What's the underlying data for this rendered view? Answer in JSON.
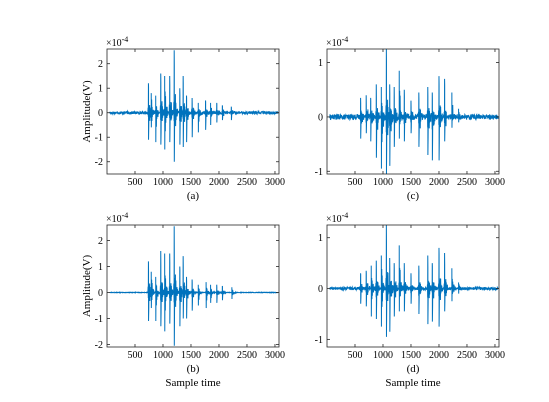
{
  "chart_data": [
    {
      "id": "a",
      "type": "line",
      "caption": "(a)",
      "ylabel": "Amplitude(V)",
      "xlabel": "",
      "exponent_label": "×10",
      "exponent_power": "-4",
      "xlim": [
        0,
        3072
      ],
      "ylim": [
        -2.5,
        2.6
      ],
      "xticks": [
        500,
        1000,
        1500,
        2000,
        2500,
        3000
      ],
      "yticks": [
        -2,
        -1,
        0,
        1,
        2
      ],
      "ytick_labels": [
        "-2",
        "-1",
        "0",
        "1",
        "2"
      ],
      "line_color": "#0072BD",
      "noise_level": 0.06,
      "events": [
        {
          "x": 740,
          "peak": 1.2,
          "trough": -1.1
        },
        {
          "x": 790,
          "peak": 0.8,
          "trough": -0.6
        },
        {
          "x": 870,
          "peak": 0.7,
          "trough": -1.2
        },
        {
          "x": 960,
          "peak": 1.6,
          "trough": -1.3
        },
        {
          "x": 1030,
          "peak": 1.5,
          "trough": -1.5
        },
        {
          "x": 1120,
          "peak": 1.5,
          "trough": -1.2
        },
        {
          "x": 1200,
          "peak": 2.55,
          "trough": -2.0
        },
        {
          "x": 1300,
          "peak": 1.0,
          "trough": -1.3
        },
        {
          "x": 1360,
          "peak": 1.5,
          "trough": -1.4
        },
        {
          "x": 1420,
          "peak": 0.7,
          "trough": -1.2
        },
        {
          "x": 1520,
          "peak": 0.6,
          "trough": -1.0
        },
        {
          "x": 1630,
          "peak": 0.4,
          "trough": -0.8
        },
        {
          "x": 1760,
          "peak": 0.5,
          "trough": -0.7
        },
        {
          "x": 1850,
          "peak": 0.4,
          "trough": -0.5
        },
        {
          "x": 1960,
          "peak": 0.4,
          "trough": -0.4
        },
        {
          "x": 2060,
          "peak": 0.3,
          "trough": -0.3
        },
        {
          "x": 2220,
          "peak": 0.25,
          "trough": -0.3
        }
      ]
    },
    {
      "id": "c",
      "type": "line",
      "caption": "(c)",
      "ylabel": "",
      "xlabel": "",
      "exponent_label": "×10",
      "exponent_power": "-4",
      "xlim": [
        0,
        3072
      ],
      "ylim": [
        -1.05,
        1.25
      ],
      "xticks": [
        500,
        1000,
        1500,
        2000,
        2500,
        3000
      ],
      "yticks": [
        -1,
        0,
        1
      ],
      "ytick_labels": [
        "-1",
        "0",
        "1"
      ],
      "line_color": "#0072BD",
      "noise_level": 0.05,
      "events": [
        {
          "x": 600,
          "peak": 0.35,
          "trough": -0.4
        },
        {
          "x": 700,
          "peak": 0.4,
          "trough": -0.3
        },
        {
          "x": 780,
          "peak": 0.35,
          "trough": -0.45
        },
        {
          "x": 880,
          "peak": 0.6,
          "trough": -0.75
        },
        {
          "x": 970,
          "peak": 0.55,
          "trough": -0.95
        },
        {
          "x": 1060,
          "peak": 1.25,
          "trough": -1.05
        },
        {
          "x": 1120,
          "peak": 0.6,
          "trough": -0.9
        },
        {
          "x": 1200,
          "peak": 0.55,
          "trough": -0.55
        },
        {
          "x": 1290,
          "peak": 0.85,
          "trough": -0.4
        },
        {
          "x": 1380,
          "peak": 0.5,
          "trough": -0.45
        },
        {
          "x": 1500,
          "peak": 0.3,
          "trough": -0.3
        },
        {
          "x": 1640,
          "peak": 0.45,
          "trough": -0.55
        },
        {
          "x": 1800,
          "peak": 0.55,
          "trough": -0.7
        },
        {
          "x": 1880,
          "peak": 0.45,
          "trough": -0.8
        },
        {
          "x": 2000,
          "peak": 0.75,
          "trough": -0.8
        },
        {
          "x": 2100,
          "peak": 0.7,
          "trough": -0.45
        },
        {
          "x": 2230,
          "peak": 0.45,
          "trough": -0.2
        },
        {
          "x": 2350,
          "peak": 0.15,
          "trough": -0.1
        }
      ]
    },
    {
      "id": "b",
      "type": "line",
      "caption": "(b)",
      "ylabel": "Amplitude(V)",
      "xlabel": "Sample time",
      "exponent_label": "×10",
      "exponent_power": "-4",
      "xlim": [
        0,
        3072
      ],
      "ylim": [
        -2.1,
        2.6
      ],
      "xticks": [
        500,
        1000,
        1500,
        2000,
        2500,
        3000
      ],
      "yticks": [
        -2,
        -1,
        0,
        1,
        2
      ],
      "ytick_labels": [
        "-2",
        "-1",
        "0",
        "1",
        "2"
      ],
      "line_color": "#0072BD",
      "noise_level": 0.01,
      "events": [
        {
          "x": 740,
          "peak": 1.2,
          "trough": -1.1
        },
        {
          "x": 790,
          "peak": 0.8,
          "trough": -0.6
        },
        {
          "x": 870,
          "peak": 0.6,
          "trough": -1.1
        },
        {
          "x": 960,
          "peak": 1.6,
          "trough": -1.3
        },
        {
          "x": 1030,
          "peak": 1.5,
          "trough": -1.5
        },
        {
          "x": 1120,
          "peak": 1.5,
          "trough": -1.2
        },
        {
          "x": 1200,
          "peak": 2.55,
          "trough": -2.05
        },
        {
          "x": 1300,
          "peak": 1.0,
          "trough": -1.3
        },
        {
          "x": 1360,
          "peak": 1.4,
          "trough": -1.0
        },
        {
          "x": 1420,
          "peak": 0.6,
          "trough": -1.0
        },
        {
          "x": 1520,
          "peak": 0.5,
          "trough": -0.7
        },
        {
          "x": 1630,
          "peak": 0.3,
          "trough": -0.5
        },
        {
          "x": 1770,
          "peak": 0.4,
          "trough": -0.6
        },
        {
          "x": 1850,
          "peak": 0.3,
          "trough": -0.4
        },
        {
          "x": 1960,
          "peak": 0.3,
          "trough": -0.4
        },
        {
          "x": 2060,
          "peak": 0.25,
          "trough": -0.3
        },
        {
          "x": 2230,
          "peak": 0.2,
          "trough": -0.25
        }
      ]
    },
    {
      "id": "d",
      "type": "line",
      "caption": "(d)",
      "ylabel": "",
      "xlabel": "Sample time",
      "exponent_label": "×10",
      "exponent_power": "-4",
      "xlim": [
        0,
        3072
      ],
      "ylim": [
        -1.15,
        1.25
      ],
      "xticks": [
        500,
        1000,
        1500,
        2000,
        2500,
        3000
      ],
      "yticks": [
        -1,
        0,
        1
      ],
      "ytick_labels": [
        "-1",
        "0",
        "1"
      ],
      "line_color": "#0072BD",
      "noise_level": 0.03,
      "events": [
        {
          "x": 600,
          "peak": 0.3,
          "trough": -0.3
        },
        {
          "x": 700,
          "peak": 0.35,
          "trough": -0.35
        },
        {
          "x": 790,
          "peak": 0.45,
          "trough": -0.55
        },
        {
          "x": 880,
          "peak": 0.55,
          "trough": -0.6
        },
        {
          "x": 970,
          "peak": 0.65,
          "trough": -0.75
        },
        {
          "x": 1060,
          "peak": 1.25,
          "trough": -0.95
        },
        {
          "x": 1120,
          "peak": 0.6,
          "trough": -0.85
        },
        {
          "x": 1200,
          "peak": 0.5,
          "trough": -0.55
        },
        {
          "x": 1290,
          "peak": 0.85,
          "trough": -0.45
        },
        {
          "x": 1380,
          "peak": 0.5,
          "trough": -0.45
        },
        {
          "x": 1500,
          "peak": 0.3,
          "trough": -0.3
        },
        {
          "x": 1640,
          "peak": 0.45,
          "trough": -0.5
        },
        {
          "x": 1800,
          "peak": 0.65,
          "trough": -0.7
        },
        {
          "x": 1880,
          "peak": 0.5,
          "trough": -0.65
        },
        {
          "x": 2000,
          "peak": 0.8,
          "trough": -0.75
        },
        {
          "x": 2100,
          "peak": 0.7,
          "trough": -0.45
        },
        {
          "x": 2230,
          "peak": 0.4,
          "trough": -0.25
        },
        {
          "x": 2350,
          "peak": 0.12,
          "trough": -0.1
        }
      ]
    }
  ]
}
